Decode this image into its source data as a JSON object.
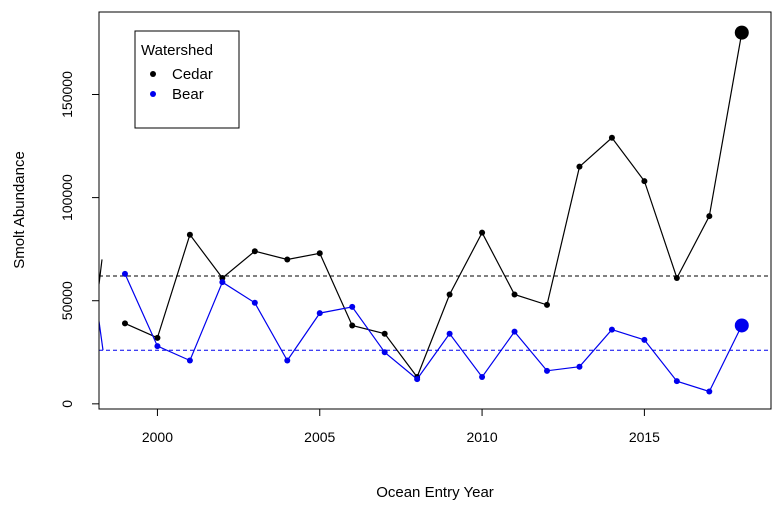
{
  "chart_data": {
    "type": "line",
    "title": "",
    "xlabel": "Ocean Entry Year",
    "ylabel": "Smolt Abundance",
    "xlim": [
      1998.2,
      2018.9
    ],
    "ylim": [
      -2500,
      190000
    ],
    "xticks": [
      2000,
      2005,
      2010,
      2015
    ],
    "yticks": [
      0,
      50000,
      100000,
      150000
    ],
    "grid": false,
    "legend": {
      "title": "Watershed",
      "position": "top-left"
    },
    "series": [
      {
        "name": "Cedar",
        "color": "#000000",
        "mean": 62000,
        "x": [
          1999,
          2000,
          2001,
          2002,
          2003,
          2004,
          2005,
          2006,
          2007,
          2008,
          2009,
          2010,
          2011,
          2012,
          2013,
          2014,
          2015,
          2016,
          2017,
          2018
        ],
        "values": [
          39000,
          32000,
          82000,
          61000,
          74000,
          70000,
          73000,
          38000,
          34000,
          13000,
          53000,
          83000,
          53000,
          48000,
          115000,
          129000,
          108000,
          61000,
          91000,
          180000
        ]
      },
      {
        "name": "Bear",
        "color": "#0000ee",
        "mean": 26000,
        "x": [
          1999,
          2000,
          2001,
          2002,
          2003,
          2004,
          2005,
          2006,
          2007,
          2008,
          2009,
          2010,
          2011,
          2012,
          2013,
          2014,
          2015,
          2016,
          2017,
          2018
        ],
        "values": [
          63000,
          28000,
          21000,
          59000,
          49000,
          21000,
          44000,
          47000,
          25000,
          12000,
          34000,
          13000,
          35000,
          16000,
          18000,
          36000,
          31000,
          11000,
          6000,
          38000
        ]
      }
    ]
  }
}
